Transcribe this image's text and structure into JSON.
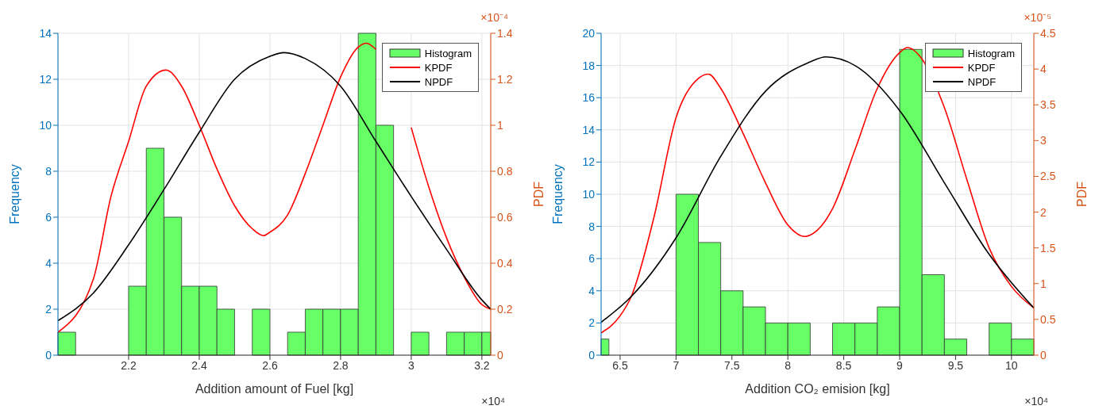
{
  "chart_data": [
    {
      "type": "histogram",
      "xlabel": "Addition amount of Fuel [kg]",
      "ylabel": "Frequency",
      "y2label": "PDF",
      "annotations": [
        "×10⁻⁴",
        "×10⁴"
      ],
      "xlim": [
        2.0,
        3.225
      ],
      "xticks": [
        2.2,
        2.4,
        2.6,
        2.8,
        3,
        3.2
      ],
      "ylim": [
        0,
        14
      ],
      "yticks": [
        0,
        2,
        4,
        6,
        8,
        10,
        12,
        14
      ],
      "y2lim": [
        0,
        1.4
      ],
      "y2ticks": [
        0,
        0.2,
        0.4,
        0.6,
        0.8,
        1,
        1.2,
        1.4
      ],
      "grid": true,
      "legend": "top right",
      "series": [
        {
          "name": "Histogram",
          "color": "#66ff66",
          "bins": [
            2.0,
            2.05,
            2.2,
            2.25,
            2.3,
            2.35,
            2.4,
            2.45,
            2.5,
            2.55,
            2.6,
            2.65,
            2.7,
            2.75,
            2.8,
            2.85,
            2.9,
            2.95,
            3.0,
            3.05,
            3.1,
            3.15,
            3.2,
            3.225
          ],
          "values": [
            1,
            0,
            3,
            9,
            6,
            3,
            3,
            2,
            0,
            2,
            0,
            1,
            2,
            2,
            2,
            14,
            10,
            0,
            1,
            0,
            1,
            1,
            1
          ]
        },
        {
          "name": "KPDF",
          "type": "line",
          "axis": "y2",
          "color": "#ff0000",
          "x": [
            2.0,
            2.1,
            2.15,
            2.2,
            2.25,
            2.306,
            2.35,
            2.4,
            2.45,
            2.5,
            2.55,
            2.582,
            2.6,
            2.65,
            2.7,
            2.75,
            2.8,
            2.85,
            2.873,
            2.9,
            2.95,
            3.0,
            3.05,
            3.1,
            3.15,
            3.2,
            3.225
          ],
          "values": [
            0.1,
            0.33,
            0.69,
            0.93,
            1.17,
            1.24,
            1.17,
            1.0,
            0.81,
            0.65,
            0.55,
            0.52,
            0.535,
            0.61,
            0.79,
            1.0,
            1.21,
            1.34,
            1.357,
            1.33,
            null,
            0.99,
            0.73,
            0.51,
            0.34,
            0.22,
            0.2
          ]
        },
        {
          "name": "NPDF",
          "type": "line",
          "axis": "y2",
          "color": "#000000",
          "x": [
            2.0,
            2.1,
            2.2,
            2.3,
            2.4,
            2.5,
            2.6,
            2.64,
            2.7,
            2.8,
            2.9,
            3.0,
            3.1,
            3.2,
            3.225
          ],
          "values": [
            0.15,
            0.27,
            0.48,
            0.72,
            0.97,
            1.2,
            1.3,
            1.316,
            1.29,
            1.17,
            0.93,
            0.69,
            0.46,
            0.24,
            0.2
          ]
        }
      ]
    },
    {
      "type": "histogram",
      "xlabel": "Addition CO₂ emision [kg]",
      "ylabel": "Frequency",
      "y2label": "PDF",
      "annotations": [
        "×10⁻⁵",
        "×10⁴"
      ],
      "xlim": [
        6.33,
        10.2
      ],
      "xticks": [
        6.5,
        7,
        7.5,
        8,
        8.5,
        9,
        9.5,
        10
      ],
      "ylim": [
        0,
        20
      ],
      "yticks": [
        0,
        2,
        4,
        6,
        8,
        10,
        12,
        14,
        16,
        18,
        20
      ],
      "y2lim": [
        0,
        4.5
      ],
      "y2ticks": [
        0,
        0.5,
        1,
        1.5,
        2,
        2.5,
        3,
        3.5,
        4,
        4.5
      ],
      "grid": true,
      "legend": "top right",
      "series": [
        {
          "name": "Histogram",
          "color": "#66ff66",
          "bins": [
            6.33,
            6.4,
            7.0,
            7.2,
            7.4,
            7.6,
            7.8,
            8.0,
            8.2,
            8.4,
            8.6,
            8.8,
            9.0,
            9.2,
            9.4,
            9.6,
            9.8,
            10.0,
            10.2
          ],
          "values": [
            1,
            0,
            10,
            7,
            4,
            3,
            2,
            2,
            0,
            2,
            2,
            3,
            19,
            5,
            1,
            0,
            2,
            1
          ]
        },
        {
          "name": "KPDF",
          "type": "line",
          "axis": "y2",
          "color": "#ff0000",
          "x": [
            6.33,
            6.5,
            6.6,
            6.8,
            7.0,
            7.2,
            7.29,
            7.4,
            7.6,
            7.8,
            8.0,
            8.15,
            8.2,
            8.4,
            8.6,
            8.8,
            9.0,
            9.07,
            9.2,
            9.4,
            9.6,
            9.8,
            10.0,
            10.2
          ],
          "values": [
            0.31,
            0.55,
            0.82,
            1.91,
            3.32,
            3.87,
            3.93,
            3.73,
            3.1,
            2.41,
            1.82,
            1.66,
            1.68,
            2.05,
            2.87,
            3.73,
            4.23,
            4.3,
            4.14,
            3.46,
            2.46,
            1.5,
            0.96,
            0.66
          ]
        },
        {
          "name": "NPDF",
          "type": "line",
          "axis": "y2",
          "color": "#000000",
          "x": [
            6.33,
            6.6,
            7.0,
            7.4,
            7.8,
            8.2,
            8.34,
            8.6,
            9.0,
            9.4,
            9.8,
            10.2
          ],
          "values": [
            0.46,
            0.82,
            1.64,
            2.78,
            3.69,
            4.1,
            4.17,
            4.05,
            3.42,
            2.41,
            1.41,
            0.66
          ]
        }
      ]
    }
  ]
}
